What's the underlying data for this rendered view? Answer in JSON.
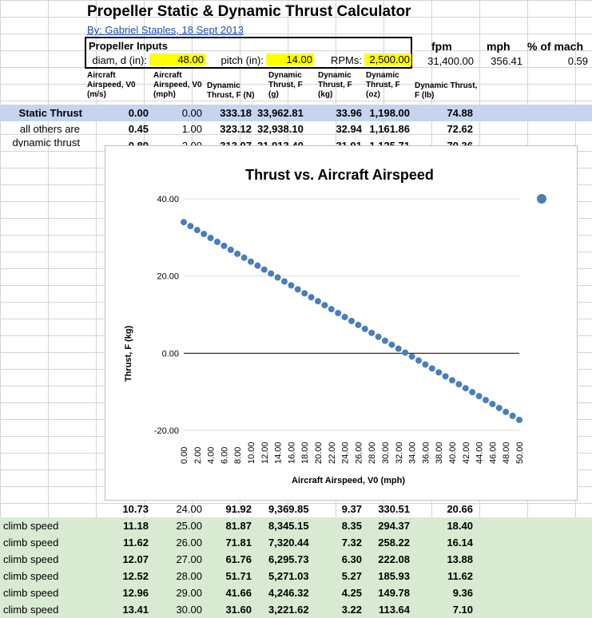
{
  "title": "Propeller Static & Dynamic Thrust Calculator",
  "author": "By: Gabriel Staples, 18 Sept 2013",
  "inputs": {
    "header": "Propeller Inputs",
    "diam_label": "diam, d (in):",
    "diam_value": "48.00",
    "pitch_label": "pitch (in):",
    "pitch_value": "14.00",
    "rpm_label": "RPMs:",
    "rpm_value": "2,500.00"
  },
  "speed": {
    "fpm_label": "fpm",
    "fpm_value": "31,400.00",
    "mph_label": "mph",
    "mph_value": "356.41",
    "mach_label": "% of mach",
    "mach_value": "0.59"
  },
  "columns": {
    "c1": "Aircraft Airspeed, V0 (m/s)",
    "c2": "Aircraft Airspeed, V0 (mph)",
    "c3": "Dynamic Thrust, F (N)",
    "c4": "Dynamic Thrust, F (g)",
    "c5": "Dynamic Thrust, F (kg)",
    "c6": "Dynamic Thrust, F (oz)",
    "c7": "Dynamic Thrust, F (lb)"
  },
  "labels": {
    "static": "Static Thrust",
    "note1": "all others are",
    "note2": "dynamic thrust",
    "climb": "climb speed"
  },
  "rows_top": [
    {
      "ms": "0.00",
      "mph": "0.00",
      "n": "333.18",
      "g": "33,962.81",
      "kg": "33.96",
      "oz": "1,198.00",
      "lb": "74.88"
    },
    {
      "ms": "0.45",
      "mph": "1.00",
      "n": "323.12",
      "g": "32,938.10",
      "kg": "32.94",
      "oz": "1,161.86",
      "lb": "72.62"
    },
    {
      "ms": "0.89",
      "mph": "2.00",
      "n": "313.07",
      "g": "31,913.40",
      "kg": "31.91",
      "oz": "1,125.71",
      "lb": "70.36"
    }
  ],
  "rows_bottom": [
    {
      "label": "",
      "ms": "10.73",
      "mph": "24.00",
      "n": "91.92",
      "g": "9,369.85",
      "kg": "9.37",
      "oz": "330.51",
      "lb": "20.66"
    },
    {
      "label": "climb speed",
      "ms": "11.18",
      "mph": "25.00",
      "n": "81.87",
      "g": "8,345.15",
      "kg": "8.35",
      "oz": "294.37",
      "lb": "18.40"
    },
    {
      "label": "climb speed",
      "ms": "11.62",
      "mph": "26.00",
      "n": "71.81",
      "g": "7,320.44",
      "kg": "7.32",
      "oz": "258.22",
      "lb": "16.14"
    },
    {
      "label": "climb speed",
      "ms": "12.07",
      "mph": "27.00",
      "n": "61.76",
      "g": "6,295.73",
      "kg": "6.30",
      "oz": "222.08",
      "lb": "13.88"
    },
    {
      "label": "climb speed",
      "ms": "12.52",
      "mph": "28.00",
      "n": "51.71",
      "g": "5,271.03",
      "kg": "5.27",
      "oz": "185.93",
      "lb": "11.62"
    },
    {
      "label": "climb speed",
      "ms": "12.96",
      "mph": "29.00",
      "n": "41.66",
      "g": "4,246.32",
      "kg": "4.25",
      "oz": "149.78",
      "lb": "9.36"
    },
    {
      "label": "climb speed",
      "ms": "13.41",
      "mph": "30.00",
      "n": "31.60",
      "g": "3,221.62",
      "kg": "3.22",
      "oz": "113.64",
      "lb": "7.10"
    }
  ],
  "chart_data": {
    "type": "scatter",
    "title": "Thrust vs. Aircraft Airspeed",
    "xlabel": "Aircraft Airspeed, V0 (mph)",
    "ylabel": "Thrust, F (kg)",
    "ylim": [
      -20,
      40
    ],
    "yticks": [
      "40.00",
      "20.00",
      "0.00",
      "-20.00"
    ],
    "xticks": [
      "0.00",
      "2.00",
      "4.00",
      "6.00",
      "8.00",
      "10.00",
      "12.00",
      "14.00",
      "16.00",
      "18.00",
      "20.00",
      "22.00",
      "24.00",
      "26.00",
      "28.00",
      "30.00",
      "32.00",
      "34.00",
      "36.00",
      "38.00",
      "40.00",
      "42.00",
      "44.00",
      "46.00",
      "48.00",
      "50.00"
    ],
    "x_start": 0,
    "x_end": 50,
    "x_step": 1,
    "y_at_x0": 33.96,
    "y_slope": -1.0247,
    "grid": "horizontal",
    "legend": "right",
    "color": "#4a7ebb"
  }
}
